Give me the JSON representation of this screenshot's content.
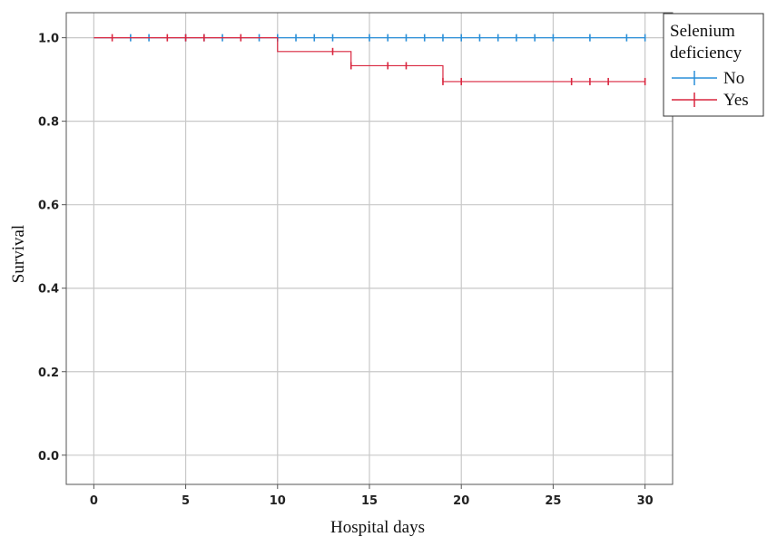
{
  "chart_data": {
    "type": "line",
    "step": true,
    "xlabel": "Hospital days",
    "ylabel": "Survival",
    "xlim": [
      -1.5,
      31.5
    ],
    "ylim": [
      -0.07,
      1.06
    ],
    "xticks": [
      0,
      5,
      10,
      15,
      20,
      25,
      30
    ],
    "yticks": [
      0.0,
      0.2,
      0.4,
      0.6,
      0.8,
      1.0
    ],
    "xtick_labels": [
      "0",
      "5",
      "10",
      "15",
      "20",
      "25",
      "30"
    ],
    "ytick_labels": [
      "0.0",
      "0.2",
      "0.4",
      "0.6",
      "0.8",
      "1.0"
    ],
    "grid": true,
    "legend": {
      "title_lines": [
        "Selenium",
        "deficiency"
      ],
      "placement": "top-right-outside"
    },
    "series": [
      {
        "name": "No",
        "color": "#2a8fd8",
        "steps": [
          [
            0,
            1.0
          ],
          [
            30,
            1.0
          ]
        ],
        "censored": [
          [
            2,
            1.0
          ],
          [
            3,
            1.0
          ],
          [
            5,
            1.0
          ],
          [
            6,
            1.0
          ],
          [
            7,
            1.0
          ],
          [
            9,
            1.0
          ],
          [
            10,
            1.0
          ],
          [
            11,
            1.0
          ],
          [
            12,
            1.0
          ],
          [
            13,
            1.0
          ],
          [
            15,
            1.0
          ],
          [
            16,
            1.0
          ],
          [
            17,
            1.0
          ],
          [
            18,
            1.0
          ],
          [
            19,
            1.0
          ],
          [
            20,
            1.0
          ],
          [
            21,
            1.0
          ],
          [
            22,
            1.0
          ],
          [
            23,
            1.0
          ],
          [
            24,
            1.0
          ],
          [
            25,
            1.0
          ],
          [
            27,
            1.0
          ],
          [
            29,
            1.0
          ],
          [
            30,
            1.0
          ]
        ]
      },
      {
        "name": "Yes",
        "color": "#d9263f",
        "steps": [
          [
            0,
            1.0
          ],
          [
            10,
            0.967
          ],
          [
            14,
            0.933
          ],
          [
            19,
            0.895
          ],
          [
            30,
            0.895
          ]
        ],
        "censored": [
          [
            1,
            1.0
          ],
          [
            4,
            1.0
          ],
          [
            5,
            1.0
          ],
          [
            6,
            1.0
          ],
          [
            8,
            1.0
          ],
          [
            13,
            0.967
          ],
          [
            14,
            0.933
          ],
          [
            16,
            0.933
          ],
          [
            17,
            0.933
          ],
          [
            19,
            0.895
          ],
          [
            20,
            0.895
          ],
          [
            26,
            0.895
          ],
          [
            27,
            0.895
          ],
          [
            28,
            0.895
          ],
          [
            30,
            0.895
          ]
        ]
      }
    ]
  }
}
